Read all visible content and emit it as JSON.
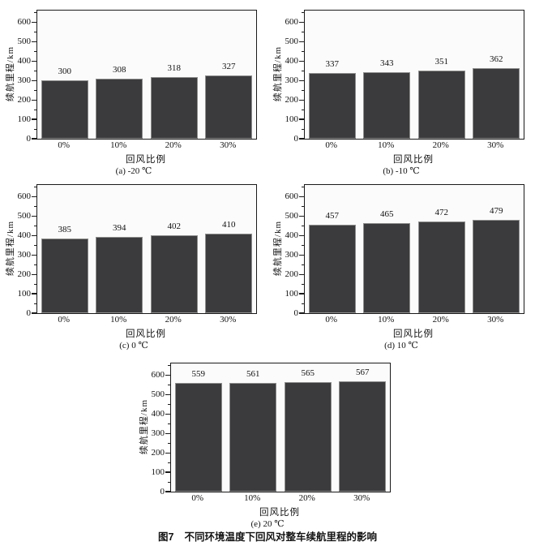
{
  "figure": {
    "caption_label": "图7",
    "caption_title": "不同环境温度下回风对整车续航里程的影响"
  },
  "colors": {
    "bar_fill": "#3b3b3d",
    "bar_edge": "#8e8e8e",
    "axis_line": "#1a1a1a",
    "text": "#111111",
    "panel_bg": "#fbfbfb"
  },
  "chart_data": [
    {
      "type": "bar",
      "title": "(a) -20 ℃",
      "categories": [
        "0%",
        "10%",
        "20%",
        "30%"
      ],
      "values": [
        300,
        308,
        318,
        327
      ],
      "xlabel": "回风比例",
      "ylabel": "续航里程/km",
      "ylim": [
        0,
        660
      ],
      "yticks": [
        0,
        100,
        200,
        300,
        400,
        500,
        600
      ],
      "minor_tick_step": 50,
      "grid": false,
      "legend": "none"
    },
    {
      "type": "bar",
      "title": "(b) -10 ℃",
      "categories": [
        "0%",
        "10%",
        "20%",
        "30%"
      ],
      "values": [
        337,
        343,
        351,
        362
      ],
      "xlabel": "回风比例",
      "ylabel": "续航里程/km",
      "ylim": [
        0,
        660
      ],
      "yticks": [
        0,
        100,
        200,
        300,
        400,
        500,
        600
      ],
      "minor_tick_step": 50,
      "grid": false,
      "legend": "none"
    },
    {
      "type": "bar",
      "title": "(c) 0 ℃",
      "categories": [
        "0%",
        "10%",
        "20%",
        "30%"
      ],
      "values": [
        385,
        394,
        402,
        410
      ],
      "xlabel": "回风比例",
      "ylabel": "续航里程/km",
      "ylim": [
        0,
        660
      ],
      "yticks": [
        0,
        100,
        200,
        300,
        400,
        500,
        600
      ],
      "minor_tick_step": 50,
      "grid": false,
      "legend": "none"
    },
    {
      "type": "bar",
      "title": "(d) 10 ℃",
      "categories": [
        "0%",
        "10%",
        "20%",
        "30%"
      ],
      "values": [
        457,
        465,
        472,
        479
      ],
      "xlabel": "回风比例",
      "ylabel": "续航里程/km",
      "ylim": [
        0,
        660
      ],
      "yticks": [
        0,
        100,
        200,
        300,
        400,
        500,
        600
      ],
      "minor_tick_step": 50,
      "grid": false,
      "legend": "none"
    },
    {
      "type": "bar",
      "title": "(e) 20 ℃",
      "categories": [
        "0%",
        "10%",
        "20%",
        "30%"
      ],
      "values": [
        559,
        561,
        565,
        567
      ],
      "xlabel": "回风比例",
      "ylabel": "续航里程/km",
      "ylim": [
        0,
        660
      ],
      "yticks": [
        0,
        100,
        200,
        300,
        400,
        500,
        600
      ],
      "minor_tick_step": 50,
      "grid": false,
      "legend": "none"
    }
  ]
}
